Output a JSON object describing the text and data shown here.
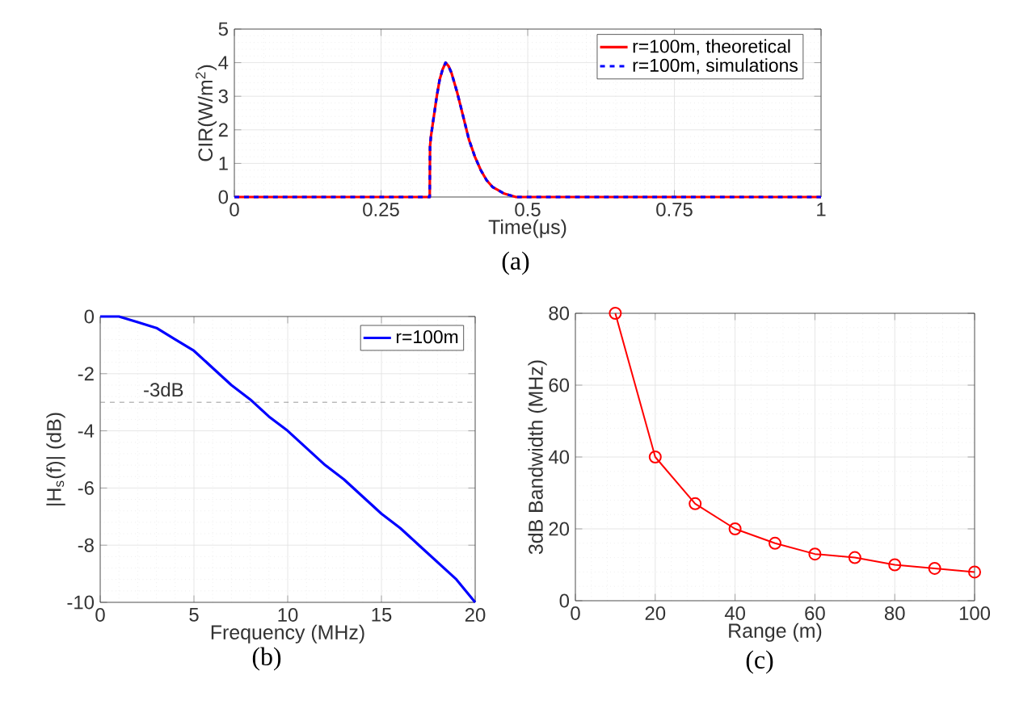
{
  "chart_data": [
    {
      "type": "line",
      "xlabel": "Time(μs)",
      "ylabel": "CIR(W/m$^{2}$)",
      "xlim": [
        0,
        1
      ],
      "ylim": [
        0,
        5
      ],
      "xticks": [
        0,
        0.25,
        0.5,
        0.75,
        1
      ],
      "yticks": [
        0,
        1,
        2,
        3,
        4,
        5
      ],
      "grid": true,
      "legend": "top right",
      "marker": "none",
      "annotations": [
        "(a)"
      ],
      "series": [
        {
          "name": "r=100m, theoretical",
          "color": "#ff0000",
          "line_style": "solid",
          "x": [
            0,
            0.333,
            0.3335,
            0.335,
            0.34,
            0.345,
            0.35,
            0.355,
            0.36,
            0.365,
            0.37,
            0.38,
            0.39,
            0.4,
            0.41,
            0.42,
            0.43,
            0.44,
            0.45,
            0.46,
            0.48,
            0.5,
            0.55,
            1
          ],
          "values": [
            0,
            0,
            1.5,
            1.8,
            2.4,
            3.0,
            3.5,
            3.8,
            4.0,
            3.9,
            3.7,
            3.1,
            2.4,
            1.7,
            1.2,
            0.8,
            0.5,
            0.3,
            0.2,
            0.1,
            0,
            0,
            0,
            0
          ]
        },
        {
          "name": "r=100m, simulations",
          "color": "#0000ff",
          "line_style": "dashed",
          "x": [
            0,
            0.333,
            0.3335,
            0.335,
            0.34,
            0.345,
            0.35,
            0.355,
            0.36,
            0.365,
            0.37,
            0.38,
            0.39,
            0.4,
            0.41,
            0.42,
            0.43,
            0.44,
            0.45,
            0.46,
            0.48,
            0.5,
            0.55,
            1
          ],
          "values": [
            0,
            0,
            1.5,
            1.8,
            2.4,
            3.0,
            3.5,
            3.8,
            4.0,
            3.9,
            3.7,
            3.1,
            2.4,
            1.7,
            1.2,
            0.8,
            0.5,
            0.3,
            0.2,
            0.1,
            0,
            0,
            0,
            0
          ]
        }
      ]
    },
    {
      "type": "line",
      "xlabel": "Frequency (MHz)",
      "ylabel": "|H$_{s}$(f)| (dB)",
      "xlim": [
        0,
        20
      ],
      "ylim": [
        -10,
        0
      ],
      "xticks": [
        0,
        5,
        10,
        15,
        20
      ],
      "yticks": [
        -10,
        -8,
        -6,
        -4,
        -2,
        0
      ],
      "grid": true,
      "legend": "top right",
      "marker": "none",
      "annotations": [
        "(b)"
      ],
      "ref_lines": [
        {
          "axis": "y",
          "value": -3,
          "label": "-3dB",
          "color": "#808080",
          "line_style": "dashed"
        }
      ],
      "series": [
        {
          "name": "r=100m",
          "color": "#0000ff",
          "line_style": "solid",
          "x": [
            0,
            1,
            2,
            3,
            4,
            5,
            6,
            7,
            8,
            9,
            10,
            11,
            12,
            13,
            14,
            15,
            16,
            17,
            18,
            19,
            20
          ],
          "values": [
            0,
            0,
            -0.2,
            -0.4,
            -0.8,
            -1.2,
            -1.8,
            -2.4,
            -2.9,
            -3.5,
            -4.0,
            -4.6,
            -5.2,
            -5.7,
            -6.3,
            -6.9,
            -7.4,
            -8.0,
            -8.6,
            -9.2,
            -10
          ]
        }
      ]
    },
    {
      "type": "line",
      "xlabel": "Range (m)",
      "ylabel": "3dB Bandwidth (MHz)",
      "xlim": [
        0,
        100
      ],
      "ylim": [
        0,
        80
      ],
      "xticks": [
        0,
        20,
        40,
        60,
        80,
        100
      ],
      "yticks": [
        0,
        20,
        40,
        60,
        80
      ],
      "grid": true,
      "legend": false,
      "marker": "circle",
      "annotations": [
        "(c)"
      ],
      "series": [
        {
          "color": "#ff0000",
          "line_style": "solid",
          "x": [
            10,
            20,
            30,
            40,
            50,
            60,
            70,
            80,
            90,
            100
          ],
          "values": [
            80,
            40,
            27,
            20,
            16,
            13,
            12,
            10,
            9,
            8
          ]
        }
      ]
    }
  ]
}
